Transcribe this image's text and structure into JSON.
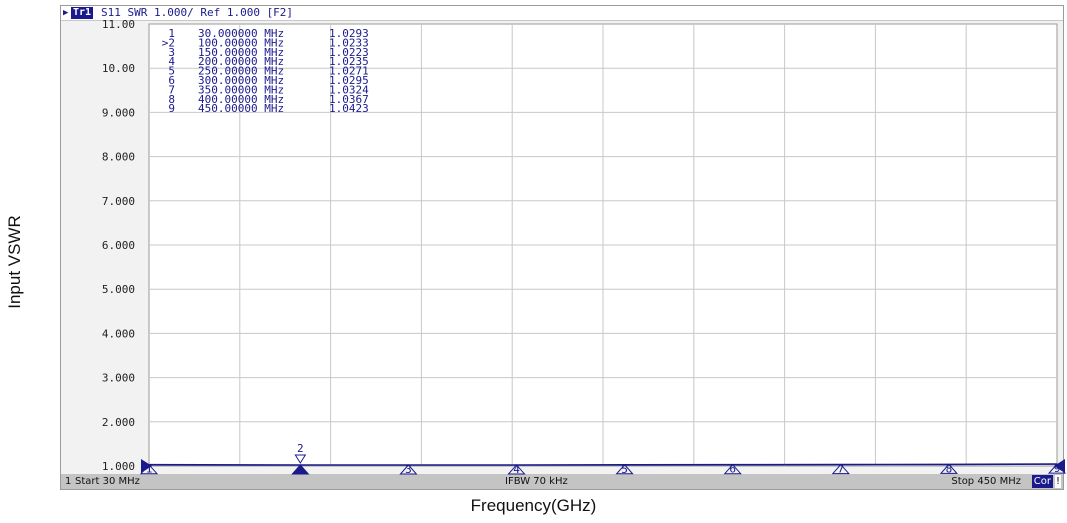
{
  "axis_labels": {
    "y": "Input VSWR",
    "x": "Frequency(GHz)"
  },
  "header": {
    "trace_badge": "Tr1",
    "trace_info": "S11  SWR 1.000/ Ref 1.000  [F2]"
  },
  "footer": {
    "channel": "1",
    "start": "Start 30 MHz",
    "ifbw": "IFBW 70 kHz",
    "stop": "Stop 450 MHz",
    "cor": "Cor",
    "flag": "!"
  },
  "colors": {
    "trace": "#1a1a8c",
    "grid": "#c8c8c8",
    "plot_bg": "#ffffff"
  },
  "chart_data": {
    "type": "line",
    "title": "",
    "xlabel": "Frequency(GHz)",
    "ylabel": "Input VSWR",
    "xlim": [
      30,
      450
    ],
    "ylim": [
      1,
      11
    ],
    "grid": true,
    "y_ticks": [
      "11.00",
      "10.00",
      "9.000",
      "8.000",
      "7.000",
      "6.000",
      "5.000",
      "4.000",
      "3.000",
      "2.000",
      "1.000"
    ],
    "x_divisions": 10,
    "active_marker": "2",
    "series": [
      {
        "x": [
          30,
          100,
          150,
          200,
          250,
          300,
          350,
          400,
          450
        ],
        "y": [
          1.0293,
          1.0233,
          1.0223,
          1.0235,
          1.0271,
          1.0295,
          1.0324,
          1.0367,
          1.0423
        ]
      }
    ],
    "markers": [
      {
        "id": "1",
        "freq": "30.000000 MHz",
        "value": "1.0293",
        "x": 30,
        "y": 1.0293,
        "prefix": ""
      },
      {
        "id": "2",
        "freq": "100.00000 MHz",
        "value": "1.0233",
        "x": 100,
        "y": 1.0233,
        "prefix": ">"
      },
      {
        "id": "3",
        "freq": "150.00000 MHz",
        "value": "1.0223",
        "x": 150,
        "y": 1.0223,
        "prefix": ""
      },
      {
        "id": "4",
        "freq": "200.00000 MHz",
        "value": "1.0235",
        "x": 200,
        "y": 1.0235,
        "prefix": ""
      },
      {
        "id": "5",
        "freq": "250.00000 MHz",
        "value": "1.0271",
        "x": 250,
        "y": 1.0271,
        "prefix": ""
      },
      {
        "id": "6",
        "freq": "300.00000 MHz",
        "value": "1.0295",
        "x": 300,
        "y": 1.0295,
        "prefix": ""
      },
      {
        "id": "7",
        "freq": "350.00000 MHz",
        "value": "1.0324",
        "x": 350,
        "y": 1.0324,
        "prefix": ""
      },
      {
        "id": "8",
        "freq": "400.00000 MHz",
        "value": "1.0367",
        "x": 400,
        "y": 1.0367,
        "prefix": ""
      },
      {
        "id": "9",
        "freq": "450.00000 MHz",
        "value": "1.0423",
        "x": 450,
        "y": 1.0423,
        "prefix": ""
      }
    ]
  }
}
